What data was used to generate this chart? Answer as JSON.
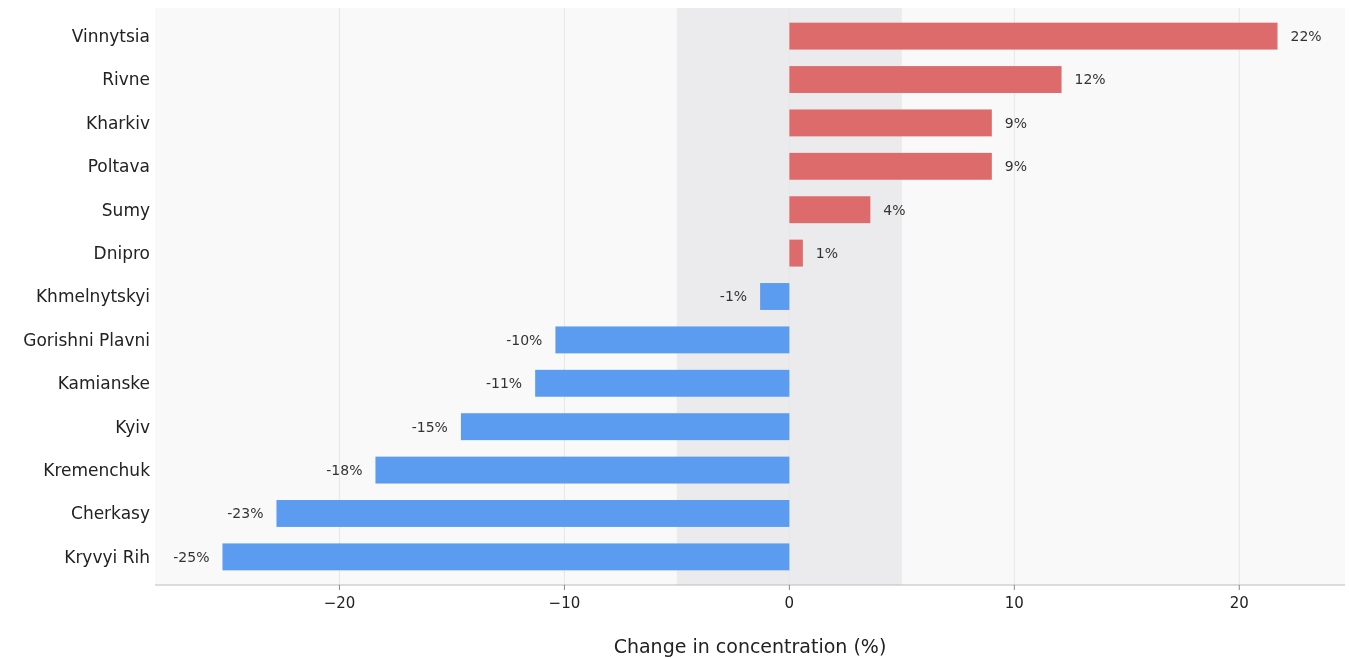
{
  "chart_data": {
    "type": "bar",
    "orientation": "horizontal",
    "xlabel": "Change in concentration (%)",
    "categories": [
      "Vinnytsia",
      "Rivne",
      "Kharkiv",
      "Poltava",
      "Sumy",
      "Dnipro",
      "Khmelnytskyi",
      "Gorishni Plavni",
      "Kamianske",
      "Kyiv",
      "Kremenchuk",
      "Cherkasy",
      "Kryvyi Rih"
    ],
    "values": [
      21.7,
      12.1,
      9.0,
      9.0,
      3.6,
      0.6,
      -1.3,
      -10.4,
      -11.3,
      -14.6,
      -18.4,
      -22.8,
      -25.2
    ],
    "colors": [
      "#de6b6b",
      "#de6b6b",
      "#de6b6b",
      "#de6b6b",
      "#de6b6b",
      "#de6b6b",
      "#5b9bf0",
      "#5b9bf0",
      "#5b9bf0",
      "#5b9bf0",
      "#5b9bf0",
      "#5b9bf0",
      "#5b9bf0"
    ],
    "value_labels": [
      "22%",
      "12%",
      "9%",
      "9%",
      "4%",
      "1%",
      "-1%",
      "-10%",
      "-11%",
      "-15%",
      "-18%",
      "-23%",
      "-25%"
    ],
    "xlim": [
      -28.2,
      24.7
    ],
    "xticks": [
      {
        "value": -20,
        "label": "−20"
      },
      {
        "value": -10,
        "label": "−10"
      },
      0,
      10,
      20
    ],
    "bands": [
      {
        "axis": "x",
        "from": -5,
        "to": 5,
        "color": "#ebebed"
      }
    ],
    "grid": "x"
  }
}
